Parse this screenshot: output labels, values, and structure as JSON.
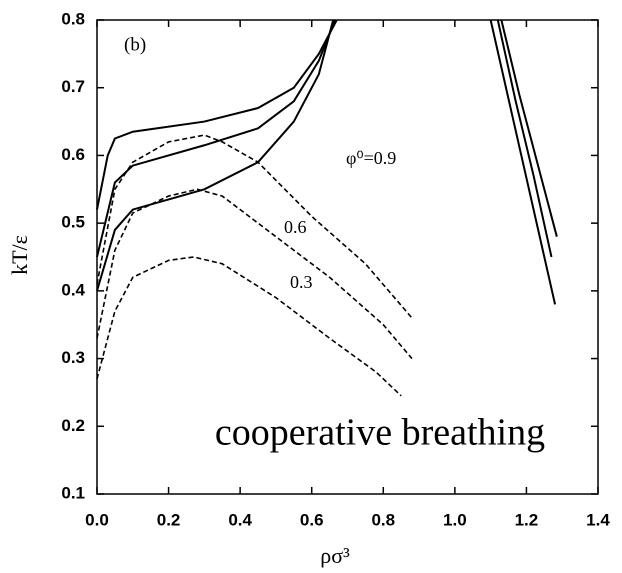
{
  "chart_data": {
    "type": "line",
    "xlabel": "ρσ³",
    "ylabel": "kT/ε",
    "annotations": [
      "(b)",
      "φ⁰=0.9",
      "0.6",
      "0.3",
      "cooperative breathing"
    ],
    "xlim": [
      0,
      1.4
    ],
    "ylim": [
      0.1,
      0.8
    ],
    "xticks": [
      {
        "value": 0,
        "label": "0.0"
      },
      0.2,
      0.4,
      0.6,
      0.8,
      {
        "value": 1,
        "label": "1.0"
      },
      1.2,
      1.4
    ],
    "yticks": [
      0.1,
      0.2,
      0.3,
      0.4,
      0.5,
      0.6,
      0.7,
      0.8
    ],
    "grid": false,
    "series": [
      {
        "color": "#000000",
        "dash": "solid",
        "x": [
          0.0,
          0.03,
          0.05,
          0.1,
          0.3,
          0.45,
          0.55,
          0.62,
          0.67
        ],
        "values": [
          0.52,
          0.6,
          0.625,
          0.635,
          0.65,
          0.67,
          0.7,
          0.75,
          0.8
        ]
      },
      {
        "color": "#000000",
        "dash": "solid",
        "x": [
          0.0,
          0.05,
          0.1,
          0.3,
          0.45,
          0.55,
          0.62,
          0.665
        ],
        "values": [
          0.45,
          0.56,
          0.585,
          0.615,
          0.64,
          0.68,
          0.74,
          0.8
        ]
      },
      {
        "color": "#000000",
        "dash": "solid",
        "x": [
          0.0,
          0.05,
          0.1,
          0.3,
          0.45,
          0.55,
          0.62,
          0.66
        ],
        "values": [
          0.4,
          0.49,
          0.52,
          0.55,
          0.59,
          0.65,
          0.72,
          0.8
        ]
      },
      {
        "color": "#000000",
        "dash": "dashed",
        "x": [
          0.0,
          0.05,
          0.1,
          0.2,
          0.3,
          0.35,
          0.45,
          0.6,
          0.75,
          0.88
        ],
        "values": [
          0.41,
          0.55,
          0.59,
          0.62,
          0.63,
          0.62,
          0.59,
          0.51,
          0.44,
          0.36
        ]
      },
      {
        "color": "#000000",
        "dash": "dashed",
        "x": [
          0.0,
          0.05,
          0.1,
          0.2,
          0.28,
          0.35,
          0.5,
          0.65,
          0.8,
          0.88
        ],
        "values": [
          0.33,
          0.46,
          0.515,
          0.54,
          0.55,
          0.54,
          0.48,
          0.42,
          0.35,
          0.3
        ]
      },
      {
        "color": "#000000",
        "dash": "dashed",
        "x": [
          0.0,
          0.05,
          0.1,
          0.2,
          0.27,
          0.35,
          0.5,
          0.65,
          0.78,
          0.85
        ],
        "values": [
          0.27,
          0.37,
          0.42,
          0.445,
          0.45,
          0.44,
          0.39,
          0.33,
          0.28,
          0.245
        ]
      },
      {
        "color": "#000000",
        "dash": "solid",
        "x": [
          1.1,
          1.16,
          1.22,
          1.28
        ],
        "values": [
          0.8,
          0.66,
          0.52,
          0.38
        ]
      },
      {
        "color": "#000000",
        "dash": "solid",
        "x": [
          1.12,
          1.17,
          1.22,
          1.27
        ],
        "values": [
          0.8,
          0.68,
          0.57,
          0.45
        ]
      },
      {
        "color": "#000000",
        "dash": "solid",
        "x": [
          1.13,
          1.18,
          1.23,
          1.285
        ],
        "values": [
          0.8,
          0.69,
          0.59,
          0.48
        ]
      }
    ]
  }
}
